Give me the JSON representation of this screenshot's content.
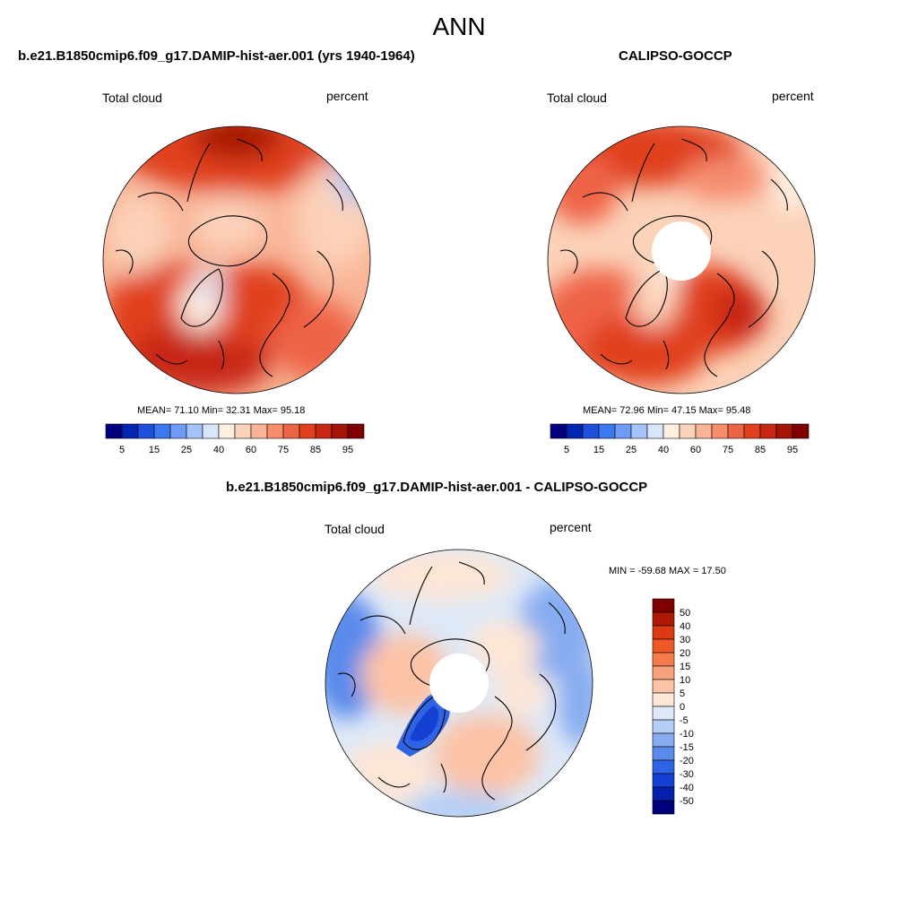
{
  "header": {
    "title": "ANN"
  },
  "panels": {
    "test": {
      "title": "b.e21.B1850cmip6.f09_g17.DAMIP-hist-aer.001 (yrs 1940-1964)",
      "variable": "Total cloud",
      "units": "percent",
      "stats_text": "MEAN=  71.10  Min=  32.31  Max=  95.18"
    },
    "ref": {
      "title": "CALIPSO-GOCCP",
      "variable": "Total cloud",
      "units": "percent",
      "stats_text": "MEAN=  72.96  Min=  47.15  Max=  95.48"
    },
    "diff": {
      "title": "b.e21.B1850cmip6.f09_g17.DAMIP-hist-aer.001 - CALIPSO-GOCCP",
      "variable": "Total cloud",
      "units": "percent",
      "stats_text": "MIN = -59.68 MAX =  17.50"
    }
  },
  "colorbar_main": {
    "labels": [
      "5",
      "15",
      "25",
      "40",
      "60",
      "75",
      "85",
      "95"
    ],
    "colors": [
      "#00007f",
      "#0027b4",
      "#1e50dc",
      "#3c78f0",
      "#6e9bf5",
      "#a5c3fa",
      "#d7e6fa",
      "#fff0e1",
      "#fcd2b9",
      "#f9b496",
      "#f58c6e",
      "#ee6446",
      "#e0401e",
      "#c72814",
      "#a51405",
      "#800000"
    ]
  },
  "colorbar_diff": {
    "labels": [
      "50",
      "40",
      "30",
      "20",
      "15",
      "10",
      "5",
      "0",
      "-5",
      "-10",
      "-15",
      "-20",
      "-30",
      "-40",
      "-50"
    ],
    "colors": [
      "#800000",
      "#b01a05",
      "#dc3a12",
      "#f05a28",
      "#f57a4c",
      "#f9a07c",
      "#fcc3a6",
      "#fde6d6",
      "#dde9f8",
      "#b4cdf5",
      "#87acf0",
      "#5a8aeb",
      "#2f64e4",
      "#1440d4",
      "#0520aa",
      "#00007f"
    ]
  }
}
